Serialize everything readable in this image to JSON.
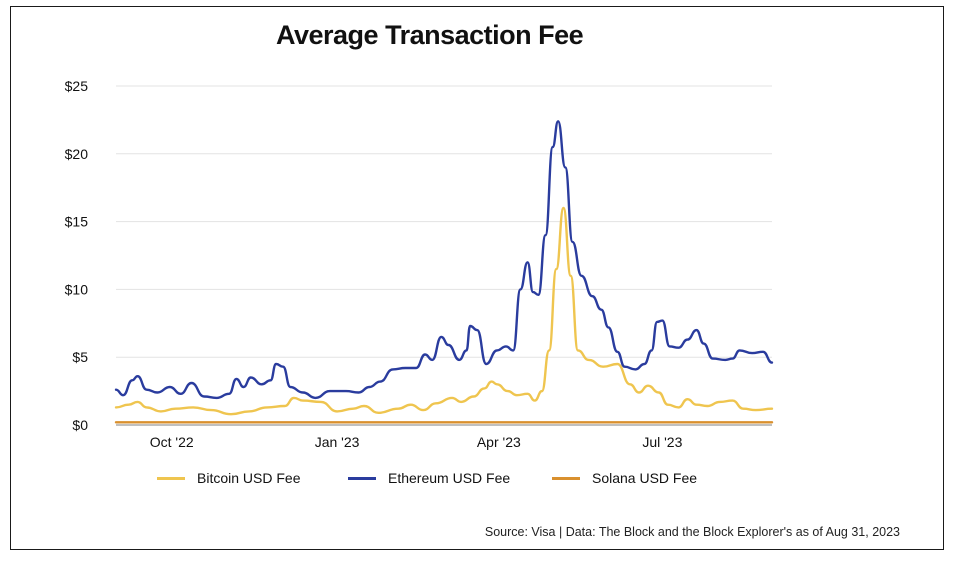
{
  "title": "Average Transaction Fee",
  "source": "Source: Visa  |  Data: The Block and the Block Explorer's as of Aug 31, 2023",
  "chart_data": {
    "type": "line",
    "title": "Average Transaction Fee",
    "xlabel": "",
    "ylabel": "",
    "x_ticks": [
      "Oct '22",
      "Jan '23",
      "Apr '23",
      "Jul '23"
    ],
    "x_tick_dates": [
      "2022-10-01",
      "2023-01-01",
      "2023-04-01",
      "2023-07-01"
    ],
    "x_range": [
      "2022-08-31",
      "2023-08-31"
    ],
    "y_ticks": [
      "$0",
      "$5",
      "$10",
      "$15",
      "$20",
      "$25"
    ],
    "y_tick_values": [
      0,
      5,
      10,
      15,
      20,
      25
    ],
    "ylim": [
      0,
      25
    ],
    "grid": "horizontal",
    "legend_position": "bottom",
    "series": [
      {
        "name": "Bitcoin USD Fee",
        "color": "#EFC54F",
        "points": [
          [
            "2022-08-31",
            1.3
          ],
          [
            "2022-09-07",
            1.5
          ],
          [
            "2022-09-12",
            1.7
          ],
          [
            "2022-09-17",
            1.3
          ],
          [
            "2022-09-25",
            1.0
          ],
          [
            "2022-10-03",
            1.2
          ],
          [
            "2022-10-13",
            1.3
          ],
          [
            "2022-10-23",
            1.1
          ],
          [
            "2022-11-03",
            0.8
          ],
          [
            "2022-11-13",
            1.0
          ],
          [
            "2022-11-23",
            1.3
          ],
          [
            "2022-12-03",
            1.4
          ],
          [
            "2022-12-08",
            2.0
          ],
          [
            "2022-12-13",
            1.8
          ],
          [
            "2022-12-23",
            1.7
          ],
          [
            "2023-01-01",
            1.0
          ],
          [
            "2023-01-10",
            1.2
          ],
          [
            "2023-01-16",
            1.4
          ],
          [
            "2023-01-24",
            0.9
          ],
          [
            "2023-02-04",
            1.2
          ],
          [
            "2023-02-11",
            1.5
          ],
          [
            "2023-02-18",
            1.1
          ],
          [
            "2023-02-25",
            1.6
          ],
          [
            "2023-03-06",
            2.0
          ],
          [
            "2023-03-11",
            1.7
          ],
          [
            "2023-03-18",
            2.1
          ],
          [
            "2023-03-24",
            2.7
          ],
          [
            "2023-03-28",
            3.2
          ],
          [
            "2023-03-31",
            3.0
          ],
          [
            "2023-04-06",
            2.5
          ],
          [
            "2023-04-11",
            2.2
          ],
          [
            "2023-04-17",
            2.3
          ],
          [
            "2023-04-21",
            1.8
          ],
          [
            "2023-04-25",
            2.5
          ],
          [
            "2023-04-29",
            5.5
          ],
          [
            "2023-05-03",
            11.5
          ],
          [
            "2023-05-07",
            16.0
          ],
          [
            "2023-05-11",
            11.0
          ],
          [
            "2023-05-15",
            5.5
          ],
          [
            "2023-05-21",
            4.8
          ],
          [
            "2023-05-29",
            4.3
          ],
          [
            "2023-06-06",
            4.5
          ],
          [
            "2023-06-13",
            3.0
          ],
          [
            "2023-06-18",
            2.4
          ],
          [
            "2023-06-23",
            2.9
          ],
          [
            "2023-06-29",
            2.4
          ],
          [
            "2023-07-04",
            1.5
          ],
          [
            "2023-07-10",
            1.3
          ],
          [
            "2023-07-15",
            1.9
          ],
          [
            "2023-07-20",
            1.5
          ],
          [
            "2023-07-26",
            1.4
          ],
          [
            "2023-08-02",
            1.7
          ],
          [
            "2023-08-09",
            1.8
          ],
          [
            "2023-08-15",
            1.2
          ],
          [
            "2023-08-22",
            1.1
          ],
          [
            "2023-08-31",
            1.2
          ]
        ]
      },
      {
        "name": "Ethereum USD Fee",
        "color": "#2A3C9E",
        "points": [
          [
            "2022-08-31",
            2.6
          ],
          [
            "2022-09-04",
            2.2
          ],
          [
            "2022-09-09",
            3.3
          ],
          [
            "2022-09-12",
            3.6
          ],
          [
            "2022-09-17",
            2.6
          ],
          [
            "2022-09-23",
            2.4
          ],
          [
            "2022-09-30",
            2.8
          ],
          [
            "2022-10-06",
            2.3
          ],
          [
            "2022-10-12",
            3.1
          ],
          [
            "2022-10-19",
            2.1
          ],
          [
            "2022-10-26",
            2.0
          ],
          [
            "2022-11-02",
            2.3
          ],
          [
            "2022-11-06",
            3.4
          ],
          [
            "2022-11-10",
            2.8
          ],
          [
            "2022-11-14",
            3.5
          ],
          [
            "2022-11-20",
            3.0
          ],
          [
            "2022-11-25",
            3.3
          ],
          [
            "2022-11-28",
            4.5
          ],
          [
            "2022-12-02",
            4.3
          ],
          [
            "2022-12-06",
            2.8
          ],
          [
            "2022-12-13",
            2.4
          ],
          [
            "2022-12-20",
            2.0
          ],
          [
            "2022-12-28",
            2.5
          ],
          [
            "2023-01-06",
            2.5
          ],
          [
            "2023-01-13",
            2.4
          ],
          [
            "2023-01-19",
            2.8
          ],
          [
            "2023-01-25",
            3.2
          ],
          [
            "2023-02-01",
            4.1
          ],
          [
            "2023-02-08",
            4.2
          ],
          [
            "2023-02-14",
            4.2
          ],
          [
            "2023-02-19",
            5.2
          ],
          [
            "2023-02-23",
            4.8
          ],
          [
            "2023-02-28",
            6.5
          ],
          [
            "2023-03-04",
            5.9
          ],
          [
            "2023-03-10",
            4.8
          ],
          [
            "2023-03-14",
            5.5
          ],
          [
            "2023-03-16",
            7.3
          ],
          [
            "2023-03-20",
            7.0
          ],
          [
            "2023-03-25",
            4.5
          ],
          [
            "2023-03-31",
            5.5
          ],
          [
            "2023-04-05",
            5.8
          ],
          [
            "2023-04-09",
            5.5
          ],
          [
            "2023-04-13",
            10.0
          ],
          [
            "2023-04-17",
            12.0
          ],
          [
            "2023-04-20",
            9.8
          ],
          [
            "2023-04-23",
            9.6
          ],
          [
            "2023-04-27",
            14.0
          ],
          [
            "2023-05-01",
            20.5
          ],
          [
            "2023-05-04",
            22.4
          ],
          [
            "2023-05-08",
            19.0
          ],
          [
            "2023-05-12",
            13.5
          ],
          [
            "2023-05-17",
            11.0
          ],
          [
            "2023-05-23",
            9.5
          ],
          [
            "2023-05-28",
            8.5
          ],
          [
            "2023-06-01",
            7.2
          ],
          [
            "2023-06-06",
            5.4
          ],
          [
            "2023-06-10",
            4.3
          ],
          [
            "2023-06-16",
            4.1
          ],
          [
            "2023-06-21",
            4.5
          ],
          [
            "2023-06-25",
            5.5
          ],
          [
            "2023-06-28",
            7.6
          ],
          [
            "2023-07-01",
            7.7
          ],
          [
            "2023-07-05",
            5.8
          ],
          [
            "2023-07-10",
            5.7
          ],
          [
            "2023-07-15",
            6.3
          ],
          [
            "2023-07-20",
            7.0
          ],
          [
            "2023-07-24",
            6.0
          ],
          [
            "2023-07-29",
            4.9
          ],
          [
            "2023-08-05",
            4.8
          ],
          [
            "2023-08-09",
            4.9
          ],
          [
            "2023-08-13",
            5.5
          ],
          [
            "2023-08-20",
            5.3
          ],
          [
            "2023-08-26",
            5.4
          ],
          [
            "2023-08-31",
            4.6
          ]
        ]
      },
      {
        "name": "Solana USD Fee",
        "color": "#D9902E",
        "points": [
          [
            "2022-08-31",
            0.2
          ],
          [
            "2023-08-31",
            0.2
          ]
        ]
      }
    ]
  }
}
